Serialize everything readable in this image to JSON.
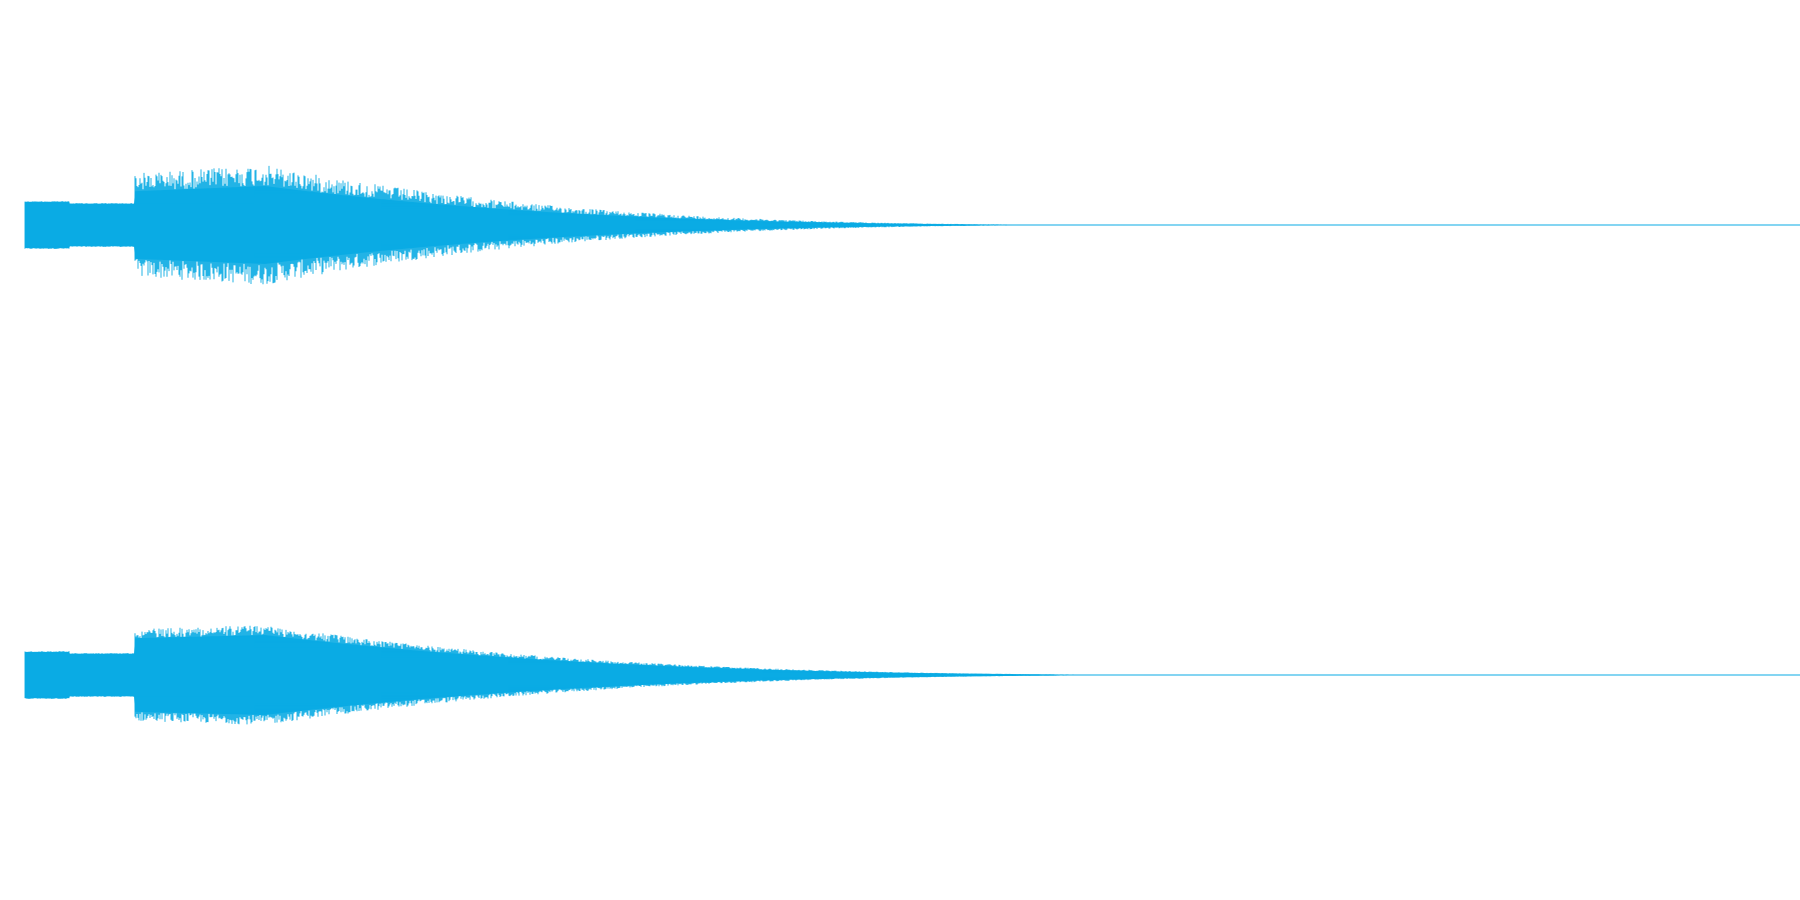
{
  "waveform": {
    "color": "#0aabe4"
  }
}
